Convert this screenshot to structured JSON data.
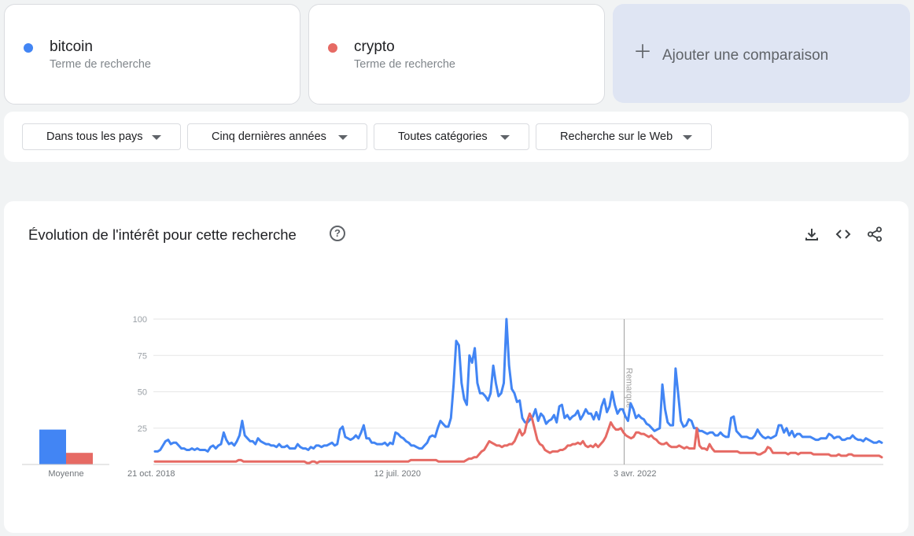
{
  "terms": [
    {
      "name": "bitcoin",
      "subtitle": "Terme de recherche",
      "color": "#4285f4"
    },
    {
      "name": "crypto",
      "subtitle": "Terme de recherche",
      "color": "#e66a64"
    }
  ],
  "add_comparison": {
    "label": "Ajouter une comparaison",
    "icon": "plus-icon"
  },
  "filters": [
    {
      "label": "Dans tous les pays"
    },
    {
      "label": "Cinq dernières années"
    },
    {
      "label": "Toutes catégories"
    },
    {
      "label": "Recherche sur le Web"
    }
  ],
  "panel": {
    "title": "Évolution de l'intérêt pour cette recherche",
    "icons": [
      "help-icon",
      "download-icon",
      "embed-icon",
      "share-icon"
    ]
  },
  "chart_data": {
    "type": "line",
    "x_ticks": [
      "21 oct. 2018",
      "12 juil. 2020",
      "3 avr. 2022"
    ],
    "y_ticks": [
      25,
      50,
      75,
      100
    ],
    "ylim": [
      0,
      100
    ],
    "annotation": "Remarque",
    "average": {
      "label": "Moyenne",
      "values": [
        {
          "term": "bitcoin",
          "value": 24
        },
        {
          "term": "crypto",
          "value": 8
        }
      ]
    },
    "series": [
      {
        "name": "bitcoin",
        "color": "#4285f4",
        "values": [
          9,
          9,
          10,
          13,
          16,
          17,
          14,
          15,
          15,
          13,
          11,
          11,
          10,
          10,
          11,
          10,
          11,
          10,
          10,
          10,
          9,
          12,
          13,
          11,
          13,
          14,
          22,
          17,
          14,
          15,
          13,
          16,
          20,
          30,
          20,
          18,
          16,
          16,
          14,
          18,
          16,
          15,
          14,
          14,
          13,
          13,
          12,
          14,
          12,
          12,
          13,
          11,
          11,
          11,
          14,
          12,
          11,
          11,
          10,
          12,
          11,
          13,
          13,
          12,
          13,
          13,
          14,
          15,
          13,
          14,
          24,
          26,
          19,
          18,
          17,
          18,
          20,
          18,
          22,
          27,
          18,
          18,
          15,
          15,
          14,
          14,
          14,
          15,
          13,
          15,
          14,
          22,
          21,
          19,
          18,
          16,
          15,
          13,
          13,
          12,
          11,
          11,
          13,
          15,
          19,
          20,
          19,
          25,
          30,
          28,
          26,
          26,
          32,
          55,
          85,
          82,
          56,
          45,
          41,
          75,
          70,
          80,
          56,
          49,
          49,
          47,
          44,
          49,
          68,
          56,
          47,
          49,
          56,
          100,
          68,
          52,
          49,
          43,
          44,
          32,
          29,
          29,
          31,
          33,
          38,
          30,
          35,
          33,
          28,
          30,
          31,
          34,
          29,
          40,
          41,
          32,
          34,
          31,
          33,
          34,
          37,
          31,
          34,
          38,
          35,
          35,
          31,
          36,
          31,
          40,
          45,
          36,
          40,
          50,
          41,
          35,
          38,
          38,
          33,
          30,
          42,
          38,
          32,
          34,
          32,
          31,
          28,
          27,
          25,
          23,
          24,
          25,
          55,
          38,
          29,
          27,
          27,
          66,
          48,
          30,
          26,
          27,
          31,
          30,
          25,
          25,
          23,
          23,
          22,
          21,
          22,
          22,
          20,
          20,
          22,
          20,
          19,
          19,
          32,
          33,
          23,
          21,
          19,
          19,
          19,
          18,
          18,
          20,
          24,
          21,
          19,
          18,
          19,
          18,
          19,
          20,
          27,
          27,
          22,
          25,
          20,
          23,
          19,
          21,
          21,
          19,
          19,
          19,
          19,
          18,
          17,
          17,
          18,
          18,
          18,
          21,
          20,
          18,
          19,
          19,
          17,
          17,
          18,
          18,
          20,
          18,
          17,
          17,
          16,
          18,
          17,
          16,
          15,
          15,
          16,
          15
        ]
      },
      {
        "name": "crypto",
        "color": "#e66a64",
        "values": [
          2,
          2,
          2,
          2,
          2,
          2,
          2,
          2,
          2,
          2,
          2,
          2,
          2,
          2,
          2,
          2,
          2,
          2,
          2,
          2,
          2,
          2,
          2,
          2,
          2,
          2,
          2,
          2,
          2,
          2,
          2,
          2,
          2,
          3,
          3,
          2,
          2,
          2,
          2,
          2,
          2,
          2,
          2,
          2,
          2,
          2,
          2,
          2,
          2,
          2,
          2,
          2,
          2,
          2,
          2,
          2,
          2,
          2,
          2,
          2,
          1,
          1,
          2,
          2,
          1,
          2,
          2,
          2,
          2,
          2,
          2,
          2,
          2,
          2,
          2,
          2,
          2,
          2,
          2,
          2,
          2,
          2,
          2,
          2,
          2,
          2,
          2,
          2,
          2,
          2,
          2,
          2,
          2,
          2,
          2,
          2,
          2,
          2,
          2,
          2,
          2,
          3,
          3,
          3,
          3,
          3,
          3,
          3,
          3,
          3,
          3,
          3,
          2,
          2,
          2,
          2,
          2,
          2,
          2,
          2,
          2,
          2,
          2,
          3,
          4,
          4,
          5,
          5,
          7,
          9,
          10,
          13,
          16,
          15,
          14,
          13,
          13,
          12,
          13,
          13,
          14,
          14,
          16,
          20,
          24,
          20,
          22,
          30,
          35,
          31,
          24,
          17,
          14,
          13,
          10,
          9,
          8,
          9,
          9,
          9,
          10,
          10,
          11,
          13,
          13,
          14,
          14,
          15,
          14,
          16,
          13,
          12,
          13,
          12,
          14,
          12,
          14,
          16,
          19,
          24,
          29,
          26,
          24,
          24,
          25,
          22,
          20,
          19,
          18,
          19,
          22,
          22,
          21,
          21,
          20,
          19,
          20,
          18,
          17,
          15,
          14,
          14,
          15,
          13,
          12,
          12,
          12,
          13,
          12,
          11,
          12,
          11,
          11,
          11,
          25,
          13,
          11,
          11,
          10,
          14,
          11,
          9,
          9,
          9,
          9,
          9,
          9,
          9,
          9,
          9,
          9,
          8,
          8,
          8,
          8,
          8,
          8,
          8,
          7,
          7,
          8,
          9,
          12,
          11,
          8,
          8,
          8,
          8,
          8,
          8,
          7,
          8,
          8,
          8,
          7,
          8,
          8,
          8,
          8,
          8,
          7,
          7,
          7,
          7,
          7,
          7,
          7,
          6,
          6,
          6,
          7,
          6,
          6,
          6,
          7,
          7,
          6,
          6,
          6,
          6,
          6,
          6,
          6,
          6,
          6,
          6,
          6,
          5
        ]
      }
    ]
  }
}
